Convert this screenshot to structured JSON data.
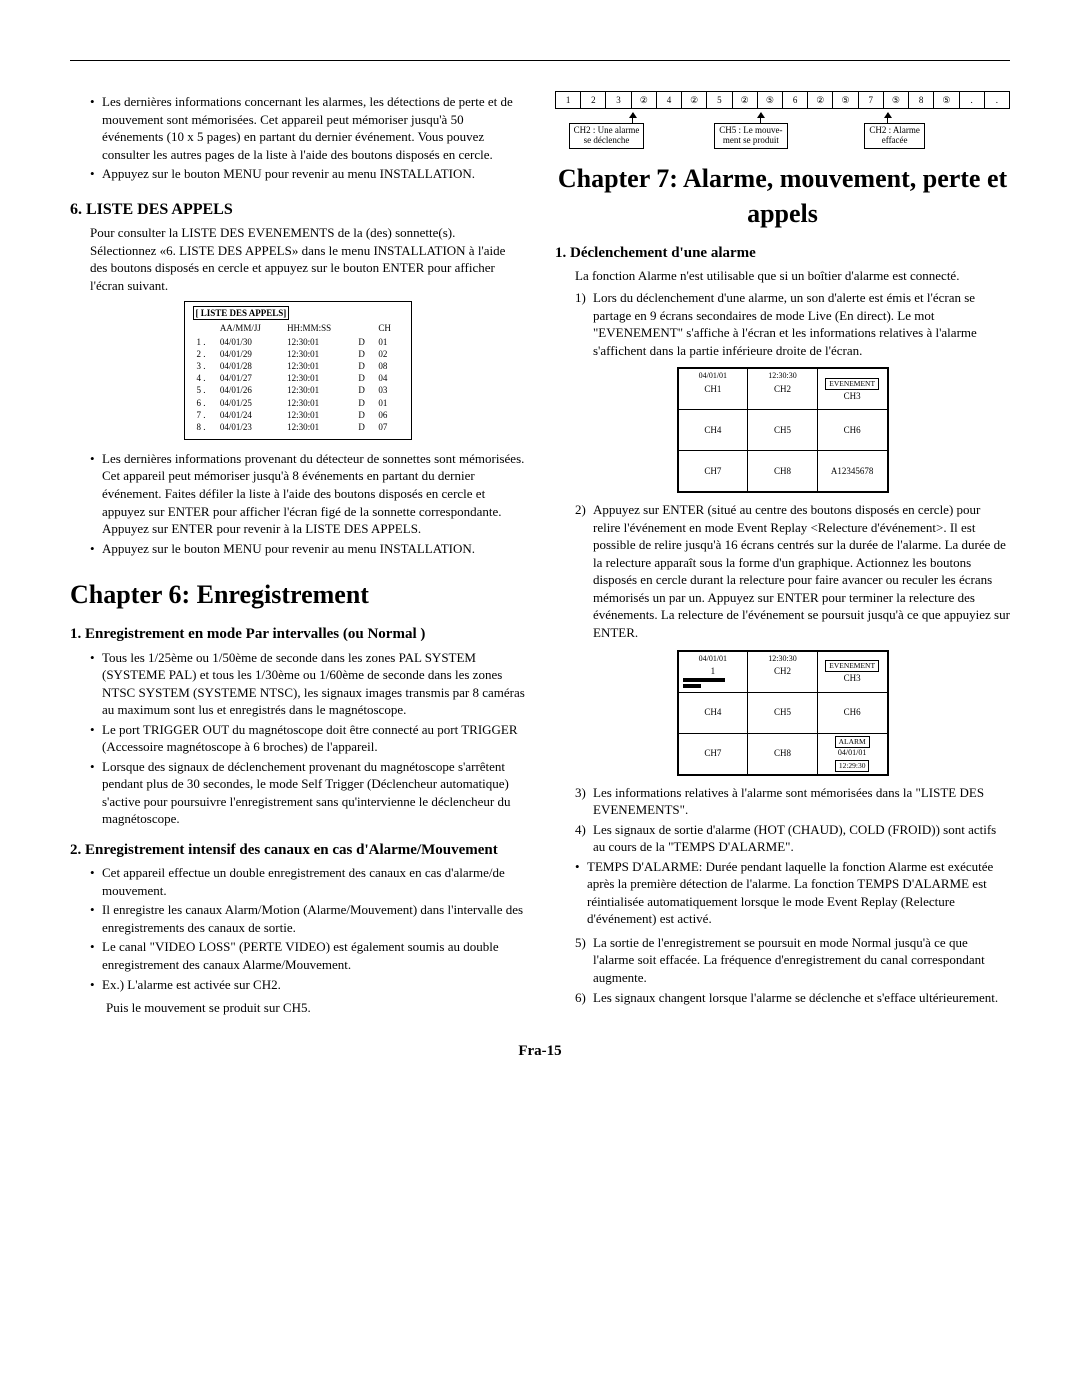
{
  "hr_present": true,
  "left": {
    "top_bullets": [
      "Les dernières informations concernant les alarmes, les détections de perte et de mouvement sont mémorisées. Cet appareil peut mémoriser jusqu'à 50 événements (10 x 5 pages) en partant du dernier événement. Vous pouvez consulter les autres pages de la liste à l'aide des boutons disposés en cercle.",
      "Appuyez sur le bouton MENU pour revenir au menu INSTALLATION."
    ],
    "section6_title": "6. LISTE DES APPELS",
    "section6_intro": "Pour consulter la LISTE DES EVENEMENTS de la (des) sonnette(s). Sélectionnez «6. LISTE DES APPELS» dans le menu INSTALLATION à l'aide des boutons disposés en cercle et appuyez sur le bouton ENTER pour afficher l'écran suivant.",
    "call_table": {
      "title": "[ LISTE DES APPELS]",
      "headers": [
        "",
        "AA/MM/JJ",
        "HH:MM:SS",
        "",
        "CH"
      ],
      "rows": [
        [
          "1 .",
          "04/01/30",
          "12:30:01",
          "D",
          "01"
        ],
        [
          "2 .",
          "04/01/29",
          "12:30:01",
          "D",
          "02"
        ],
        [
          "3 .",
          "04/01/28",
          "12:30:01",
          "D",
          "08"
        ],
        [
          "4 .",
          "04/01/27",
          "12:30:01",
          "D",
          "04"
        ],
        [
          "5 .",
          "04/01/26",
          "12:30:01",
          "D",
          "03"
        ],
        [
          "6 .",
          "04/01/25",
          "12:30:01",
          "D",
          "01"
        ],
        [
          "7 .",
          "04/01/24",
          "12:30:01",
          "D",
          "06"
        ],
        [
          "8 .",
          "04/01/23",
          "12:30:01",
          "D",
          "07"
        ]
      ]
    },
    "section6_bullets": [
      "Les dernières informations provenant du détecteur de sonnettes sont mémorisées. Cet appareil peut mémoriser jusqu'à 8 événements en partant du dernier événement. Faites défiler la liste à l'aide des boutons disposés en cercle et appuyez sur ENTER pour afficher l'écran figé de la sonnette correspondante. Appuyez sur ENTER pour revenir à la LISTE DES APPELS.",
      "Appuyez sur le bouton MENU pour revenir au menu INSTALLATION."
    ],
    "chapter6": "Chapter 6: Enregistrement",
    "s6_1_title": "1. Enregistrement en mode Par intervalles (ou Normal )",
    "s6_1_bullets": [
      "Tous les 1/25ème ou 1/50ème de seconde dans les zones PAL SYSTEM (SYSTEME PAL) et tous les 1/30ème ou 1/60ème de seconde dans les zones NTSC SYSTEM (SYSTEME NTSC), les signaux images transmis par 8 caméras au maximum sont lus et enregistrés dans le magnétoscope.",
      "Le port TRIGGER OUT du magnétoscope doit être connecté au port TRIGGER (Accessoire magnétoscope à 6 broches) de l'appareil.",
      "Lorsque des signaux de déclenchement provenant du magnétoscope s'arrêtent pendant plus de 30 secondes, le mode Self Trigger (Déclencheur automatique) s'active pour poursuivre l'enregistrement sans qu'intervienne le déclencheur du magnétoscope."
    ],
    "s6_2_title": "2. Enregistrement intensif des canaux en cas d'Alarme/Mouvement",
    "s6_2_bullets": [
      "Cet appareil effectue un double enregistrement des canaux en cas d'alarme/de mouvement.",
      "Il enregistre les canaux Alarm/Motion (Alarme/Mouvement) dans l'intervalle des enregistrements des canaux de sortie.",
      "Le canal \"VIDEO LOSS\" (PERTE VIDEO) est également soumis au double enregistrement des canaux Alarme/Mouvement.",
      "Ex.) L'alarme est activée sur CH2."
    ],
    "s6_2_note": "Puis le mouvement se produit sur CH5."
  },
  "right": {
    "strip_cells": [
      "1",
      "2",
      "3",
      "②",
      "4",
      "②",
      "5",
      "②",
      "⑤",
      "6",
      "②",
      "⑤",
      "7",
      "⑤",
      "8",
      "⑤",
      ".",
      "."
    ],
    "strip_boxes": [
      {
        "text1": "CH2 : Une alarme",
        "text2": "se déclenche",
        "left_pct": 3,
        "arrow_pct": 17
      },
      {
        "text1": "CH5 : Le mouve-",
        "text2": "ment se produit",
        "left_pct": 35,
        "arrow_pct": 45
      },
      {
        "text1": "CH2 : Alarme",
        "text2": "effacée",
        "left_pct": 68,
        "arrow_pct": 73
      }
    ],
    "chapter7": "Chapter 7: Alarme, mouvement, perte et appels",
    "s7_1_title": "1. Déclenchement d'une alarme",
    "s7_1_intro": "La fonction Alarme n'est utilisable que si un boîtier d'alarme est connecté.",
    "s7_1_item1": "Lors du déclenchement d'une alarme, un son d'alerte est émis et l'écran se partage en 9 écrans secondaires de mode Live (En direct). Le mot \"EVENEMENT\" s'affiche à l'écran et les informations relatives à l'alarme s'affichent dans la partie inférieure droite de l'écran.",
    "grid1": {
      "cells": [
        [
          {
            "top": "04/01/01",
            "lbl": "CH1"
          },
          {
            "top": "12:30:30",
            "lbl": "CH2"
          },
          {
            "box": "EVENEMENT",
            "lbl": "CH3"
          }
        ],
        [
          {
            "lbl": "CH4"
          },
          {
            "lbl": "CH5"
          },
          {
            "lbl": "CH6"
          }
        ],
        [
          {
            "lbl": "CH7"
          },
          {
            "lbl": "CH8"
          },
          {
            "lbl": "A12345678"
          }
        ]
      ]
    },
    "s7_1_item2": "Appuyez sur ENTER (situé au centre des boutons disposés en cercle) pour relire l'événement en mode Event Replay <Relecture d'événement>. Il est possible de relire jusqu'à 16 écrans centrés sur la durée de l'alarme. La durée de la relecture apparaît sous la forme d'un graphique. Actionnez les boutons disposés en cercle durant la relecture pour faire avancer ou reculer les écrans mémorisés un par un. Appuyez sur ENTER pour terminer la relecture des événements. La relecture de l'événement se poursuit jusqu'à ce que appuyiez sur ENTER.",
    "grid2": {
      "cells": [
        [
          {
            "top": "04/01/01",
            "lbl": "1",
            "bars": true
          },
          {
            "top": "12:30:30",
            "lbl": "CH2"
          },
          {
            "box": "EVENEMENT",
            "lbl": "CH3"
          }
        ],
        [
          {
            "lbl": "CH4"
          },
          {
            "lbl": "CH5"
          },
          {
            "lbl": "CH6"
          }
        ],
        [
          {
            "lbl": "CH7"
          },
          {
            "lbl": "CH8"
          },
          {
            "box": "ALARM",
            "lbl2": "04/01/01",
            "lbl3": "12:29:30"
          }
        ]
      ]
    },
    "s7_1_rest": [
      {
        "n": "3)",
        "t": "Les informations relatives à l'alarme sont mémorisées dans la \"LISTE DES EVENEMENTS\"."
      },
      {
        "n": "4)",
        "t": "Les signaux de sortie d'alarme (HOT (CHAUD), COLD (FROID)) sont actifs au cours de la \"TEMPS D'ALARME\"."
      }
    ],
    "s7_1_bullet": "TEMPS D'ALARME: Durée pendant laquelle la fonction Alarme est exécutée après la première détection de l'alarme. La fonction TEMPS D'ALARME est réintialisée automatiquement lorsque le mode Event Replay (Relecture d'événement) est activé.",
    "s7_1_rest2": [
      {
        "n": "5)",
        "t": "La sortie de l'enregistrement se poursuit en mode Normal jusqu'à ce que l'alarme soit effacée. La fréquence d'enregistrement du canal correspondant augmente."
      },
      {
        "n": "6)",
        "t": "Les signaux changent lorsque l'alarme se déclenche et s'efface ultérieurement."
      }
    ]
  },
  "footer": "Fra-15"
}
